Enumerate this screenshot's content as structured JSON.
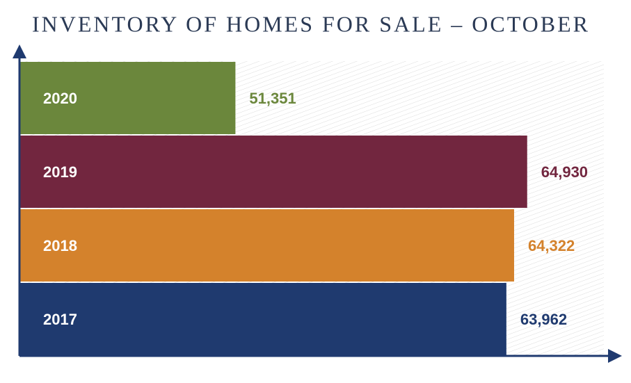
{
  "chart_data": {
    "type": "barh",
    "title": "INVENTORY OF HOMES FOR SALE – OCTOBER",
    "categories": [
      "2020",
      "2019",
      "2018",
      "2017"
    ],
    "values": [
      51351,
      64930,
      64322,
      63962
    ],
    "value_labels": [
      "51,351",
      "64,930",
      "64,322",
      "63,962"
    ],
    "colors": [
      "#6b873c",
      "#72263f",
      "#d4822c",
      "#1f3a6f"
    ],
    "xlim": [
      41300,
      68500
    ]
  }
}
